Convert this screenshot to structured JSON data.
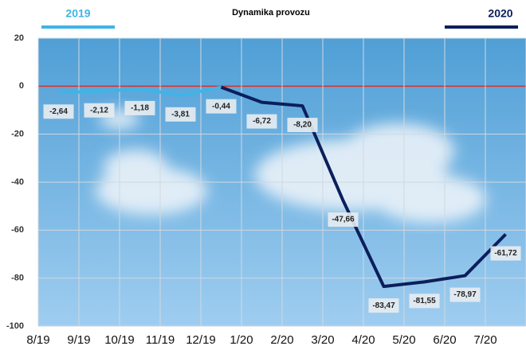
{
  "chart_data": {
    "type": "line",
    "title": "Dynamika provozu",
    "categories": [
      "8/19",
      "9/19",
      "10/19",
      "11/19",
      "12/19",
      "1/20",
      "2/20",
      "3/20",
      "4/20",
      "5/20",
      "6/20",
      "7/20"
    ],
    "series": [
      {
        "name": "2019",
        "color": "#3fb4e6",
        "values": [
          -2.64,
          -2.12,
          -1.18,
          -3.81,
          -0.44,
          null,
          null,
          null,
          null,
          null,
          null,
          null
        ],
        "value_labels": [
          "-2,64",
          "-2,12",
          "-1,18",
          "-3,81",
          "-0,44",
          null,
          null,
          null,
          null,
          null,
          null,
          null
        ]
      },
      {
        "name": "2020",
        "color": "#0b1f5c",
        "values": [
          null,
          null,
          null,
          null,
          -0.44,
          -6.72,
          -8.2,
          -47.66,
          -83.47,
          -81.55,
          -78.97,
          -61.72
        ],
        "value_labels": [
          null,
          null,
          null,
          null,
          null,
          "-6,72",
          "-8,20",
          "-47,66",
          "-83,47",
          "-81,55",
          "-78,97",
          "-61,72"
        ]
      }
    ],
    "ylim": [
      -100,
      20
    ],
    "yticks": [
      -100,
      -80,
      -60,
      -40,
      -20,
      0,
      20
    ],
    "grid": true
  }
}
